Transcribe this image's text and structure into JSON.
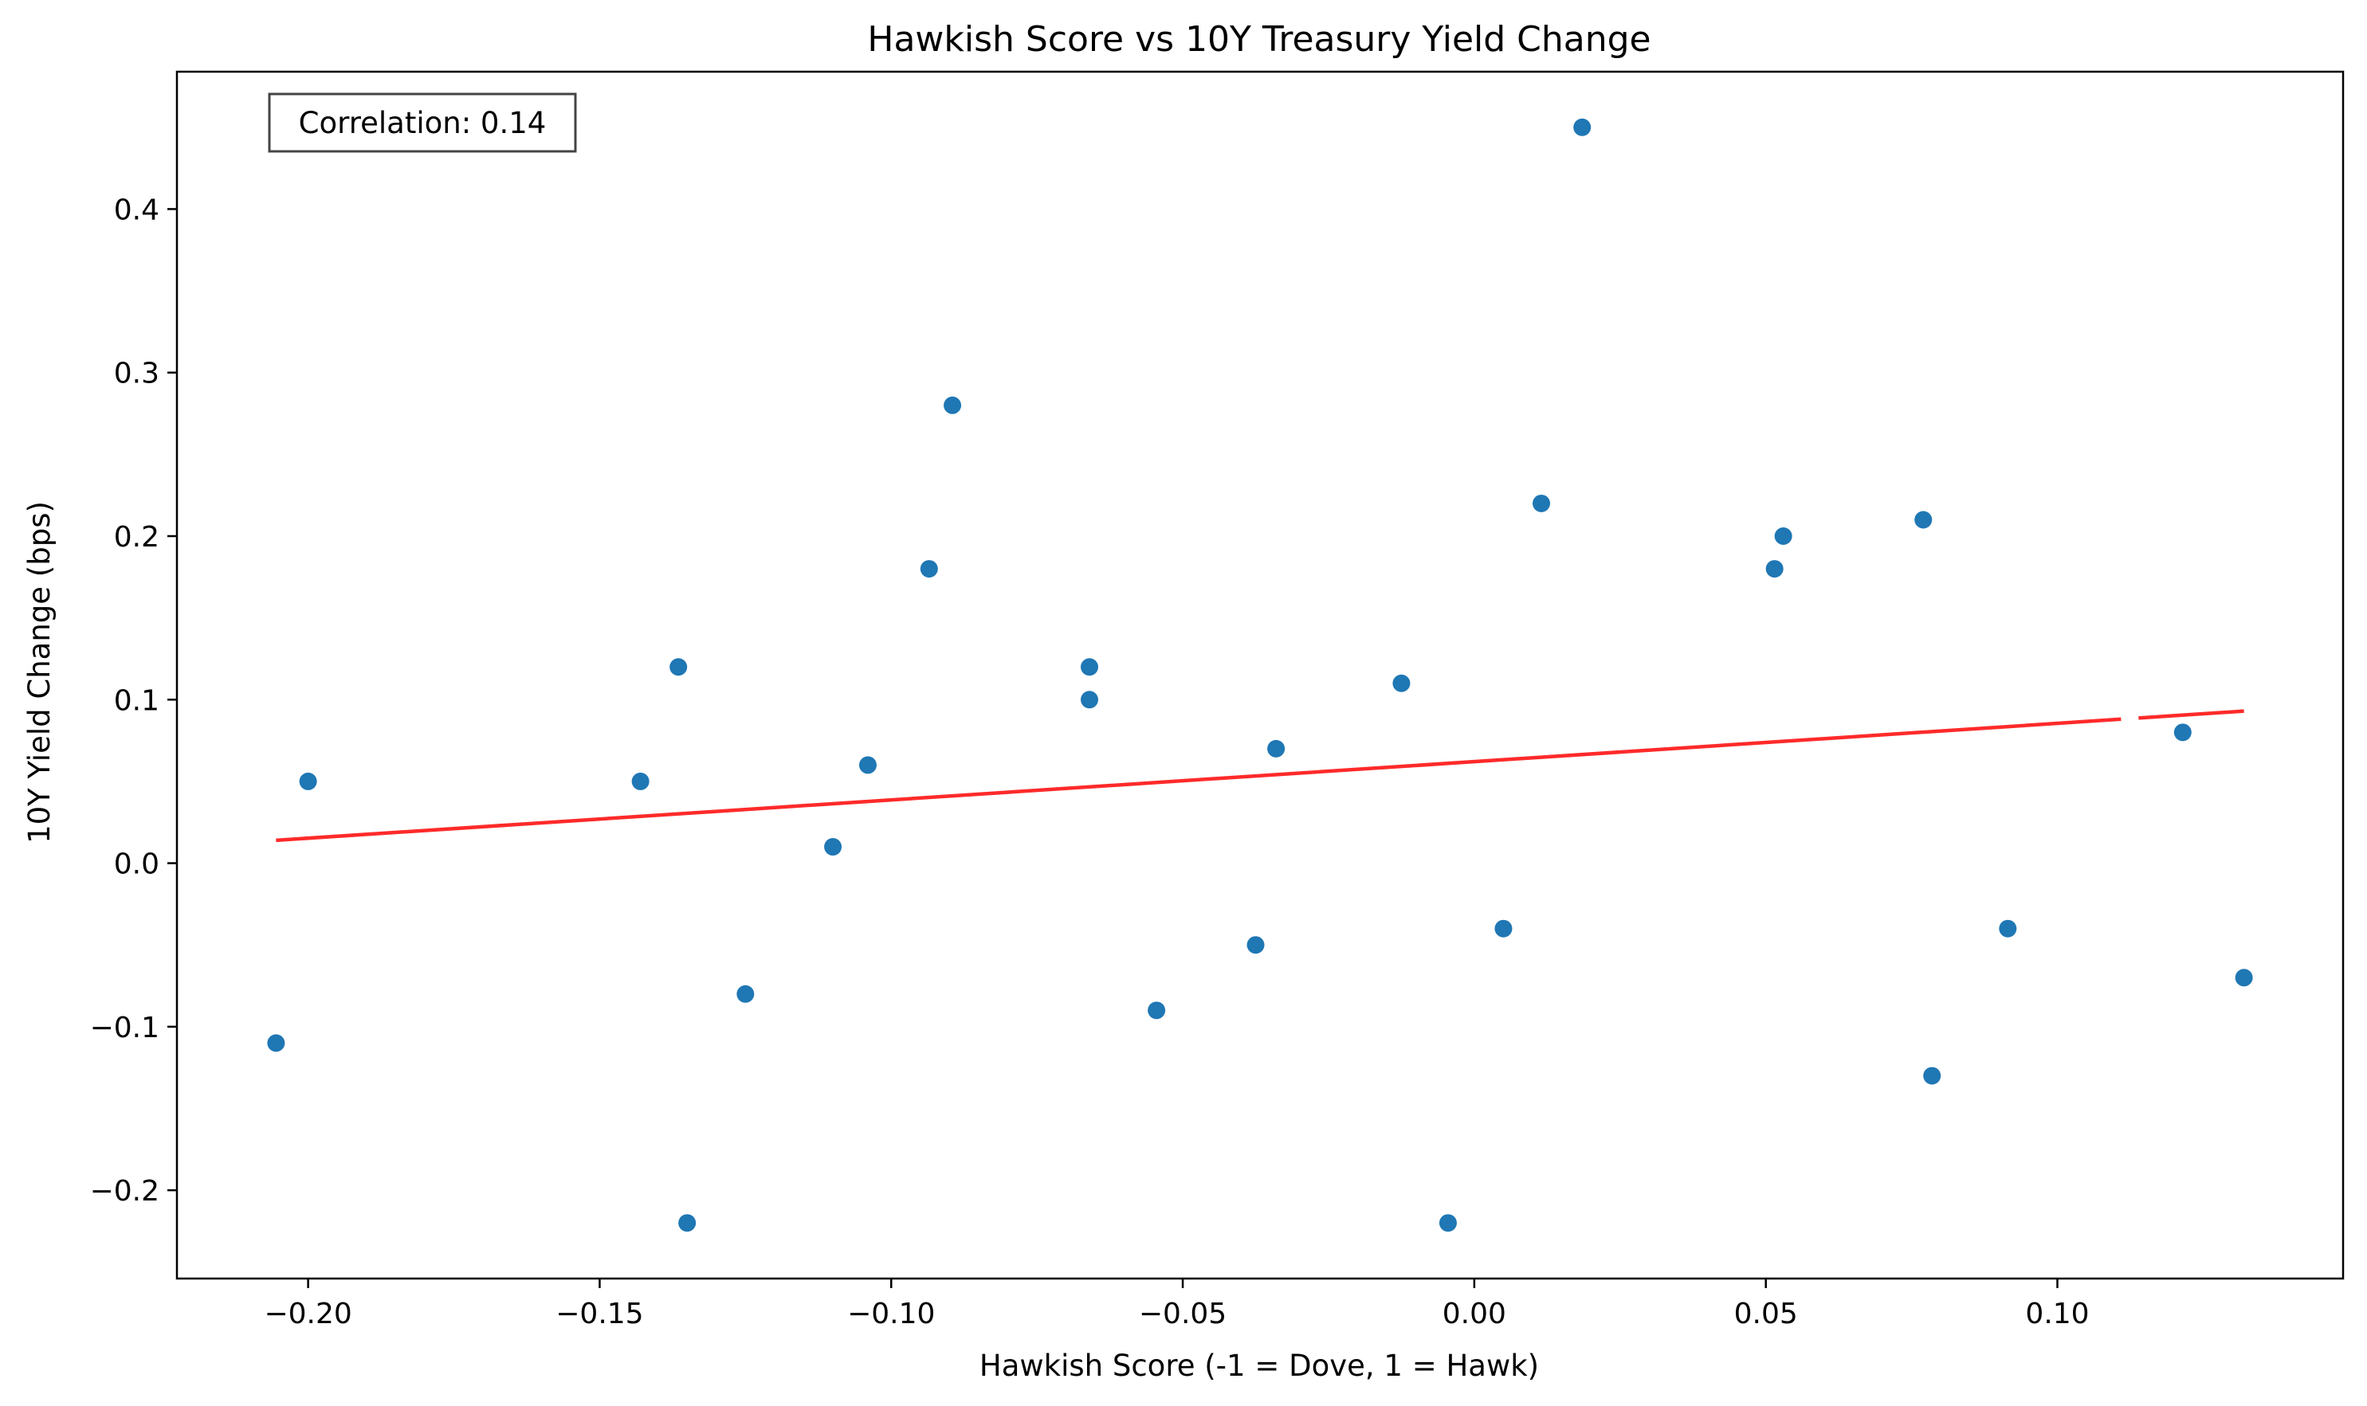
{
  "chart_data": {
    "type": "scatter",
    "title": "Hawkish Score vs 10Y Treasury Yield Change",
    "xlabel": "Hawkish Score (-1 = Dove, 1 = Hawk)",
    "ylabel": "10Y Yield Change (bps)",
    "xlim": [
      -0.2225,
      0.149
    ],
    "ylim": [
      -0.254,
      0.484
    ],
    "x_ticks": [
      -0.2,
      -0.15,
      -0.1,
      -0.05,
      0.0,
      0.05,
      0.1
    ],
    "x_tick_labels": [
      "−0.20",
      "−0.15",
      "−0.10",
      "−0.05",
      "0.00",
      "0.05",
      "0.10"
    ],
    "y_ticks": [
      -0.2,
      -0.1,
      0.0,
      0.1,
      0.2,
      0.3,
      0.4
    ],
    "y_tick_labels": [
      "−0.2",
      "−0.1",
      "0.0",
      "0.1",
      "0.2",
      "0.3",
      "0.4"
    ],
    "grid": false,
    "point_color": "#1f77b4",
    "trend_color": "#ff2a2a",
    "points": [
      {
        "x": -0.2055,
        "y": -0.11
      },
      {
        "x": -0.2,
        "y": 0.05
      },
      {
        "x": -0.143,
        "y": 0.05
      },
      {
        "x": -0.1365,
        "y": 0.12
      },
      {
        "x": -0.135,
        "y": -0.22
      },
      {
        "x": -0.125,
        "y": -0.08
      },
      {
        "x": -0.11,
        "y": 0.01
      },
      {
        "x": -0.104,
        "y": 0.06
      },
      {
        "x": -0.0935,
        "y": 0.18
      },
      {
        "x": -0.0895,
        "y": 0.28
      },
      {
        "x": -0.066,
        "y": 0.12
      },
      {
        "x": -0.066,
        "y": 0.1
      },
      {
        "x": -0.0545,
        "y": -0.09
      },
      {
        "x": -0.0375,
        "y": -0.05
      },
      {
        "x": -0.034,
        "y": 0.07
      },
      {
        "x": -0.0125,
        "y": 0.11
      },
      {
        "x": -0.0045,
        "y": -0.22
      },
      {
        "x": 0.005,
        "y": -0.04
      },
      {
        "x": 0.0115,
        "y": 0.22
      },
      {
        "x": 0.0185,
        "y": 0.45
      },
      {
        "x": 0.0515,
        "y": 0.18
      },
      {
        "x": 0.053,
        "y": 0.2
      },
      {
        "x": 0.077,
        "y": 0.21
      },
      {
        "x": 0.0785,
        "y": -0.13
      },
      {
        "x": 0.0915,
        "y": -0.04
      },
      {
        "x": 0.1215,
        "y": 0.08
      },
      {
        "x": 0.132,
        "y": -0.07
      }
    ],
    "trendline": {
      "x": [
        -0.2055,
        0.132
      ],
      "y": [
        0.014,
        0.093
      ],
      "style": "dashed"
    },
    "annotation": {
      "text": "Correlation: 0.14",
      "position": "top-left"
    }
  }
}
